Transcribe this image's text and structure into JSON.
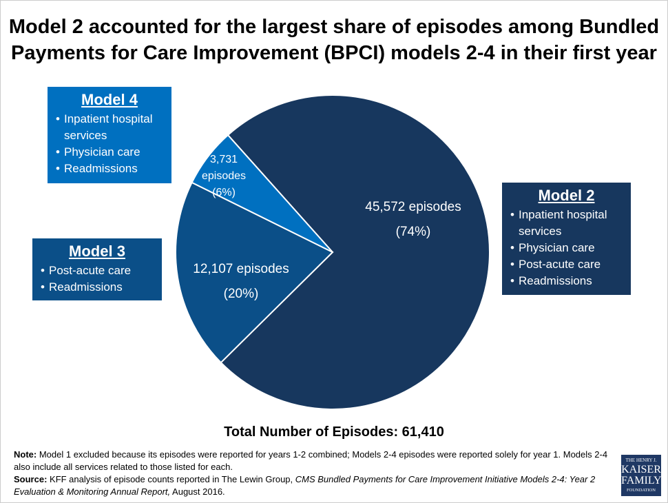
{
  "title": "Model 2 accounted for the largest share of episodes among Bundled Payments for Care Improvement (BPCI) models 2-4 in their first year",
  "chart_data": {
    "type": "pie",
    "title": "Model 2 accounted for the largest share of episodes among Bundled Payments for Care Improvement (BPCI) models 2-4 in their first year",
    "slices": [
      {
        "name": "Model 2",
        "value": 45572,
        "percent": 74,
        "label": "45,572 episodes",
        "pct_label": "(74%)",
        "color": "#17375e"
      },
      {
        "name": "Model 3",
        "value": 12107,
        "percent": 20,
        "label": "12,107 episodes",
        "pct_label": "(20%)",
        "color": "#0b4f88"
      },
      {
        "name": "Model 4",
        "value": 3731,
        "percent": 6,
        "label": "3,731 episodes",
        "pct_label": "(6%)",
        "color": "#0070c0"
      }
    ]
  },
  "legend_boxes": [
    {
      "title": "Model 4",
      "items": [
        "Inpatient hospital services",
        "Physician care",
        "Readmissions"
      ],
      "color": "#0070c0"
    },
    {
      "title": "Model 3",
      "items": [
        "Post-acute care",
        "Readmissions"
      ],
      "color": "#0b4f88"
    },
    {
      "title": "Model 2",
      "items": [
        "Inpatient hospital services",
        "Physician care",
        "Post-acute care",
        "Readmissions"
      ],
      "color": "#17375e"
    }
  ],
  "total": "Total Number of Episodes: 61,410",
  "note_label": "Note:",
  "note_text": " Model 1 excluded because its episodes were reported for years 1-2 combined; Models 2-4 episodes were reported solely for year 1. Models 2-4 also include all services related to those listed for each.",
  "source_label": "Source:",
  "source_text": " KFF analysis of episode counts reported in The Lewin Group, ",
  "source_italic": "CMS Bundled Payments for Care Improvement Initiative Models 2-4: Year 2 Evaluation & Monitoring Annual Report,",
  "source_end": " August 2016.",
  "logo": [
    "THE HENRY J.",
    "KAISER",
    "FAMILY",
    "FOUNDATION"
  ]
}
